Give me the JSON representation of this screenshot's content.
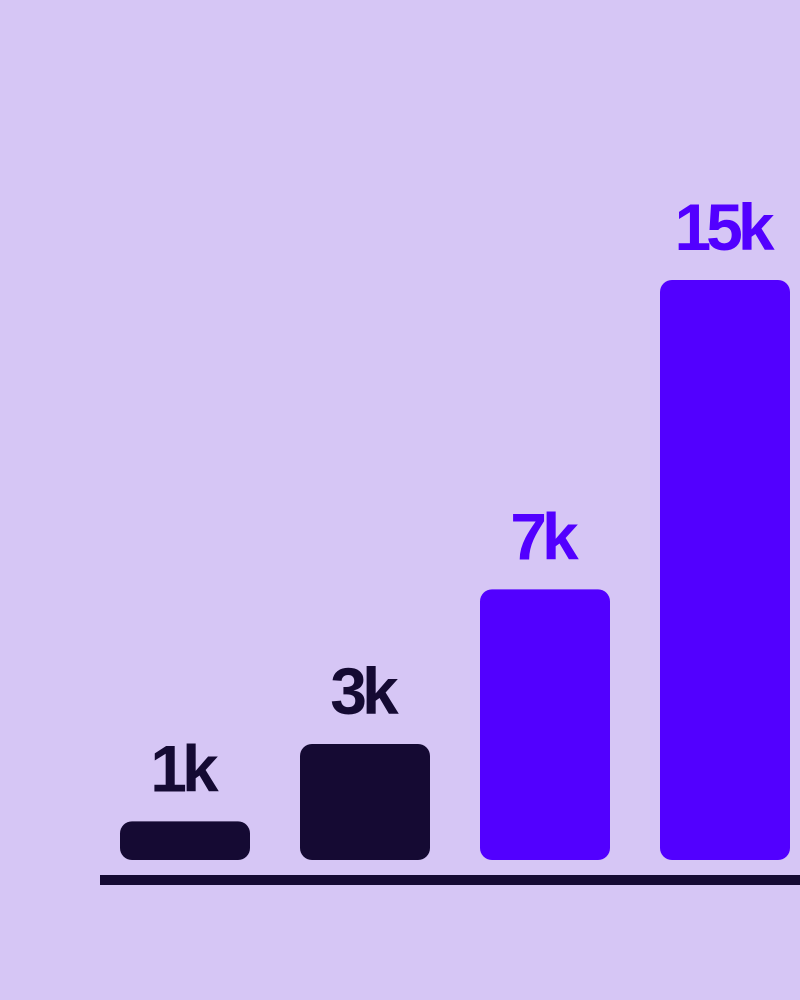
{
  "chart_data": {
    "type": "bar",
    "values": [
      1000,
      3000,
      7000,
      15000
    ],
    "value_labels": [
      "1k",
      "3k",
      "7k",
      "15k"
    ],
    "colors": [
      "#150a33",
      "#150a33",
      "#5200ff",
      "#5200ff"
    ],
    "axis_color": "#150a33"
  }
}
